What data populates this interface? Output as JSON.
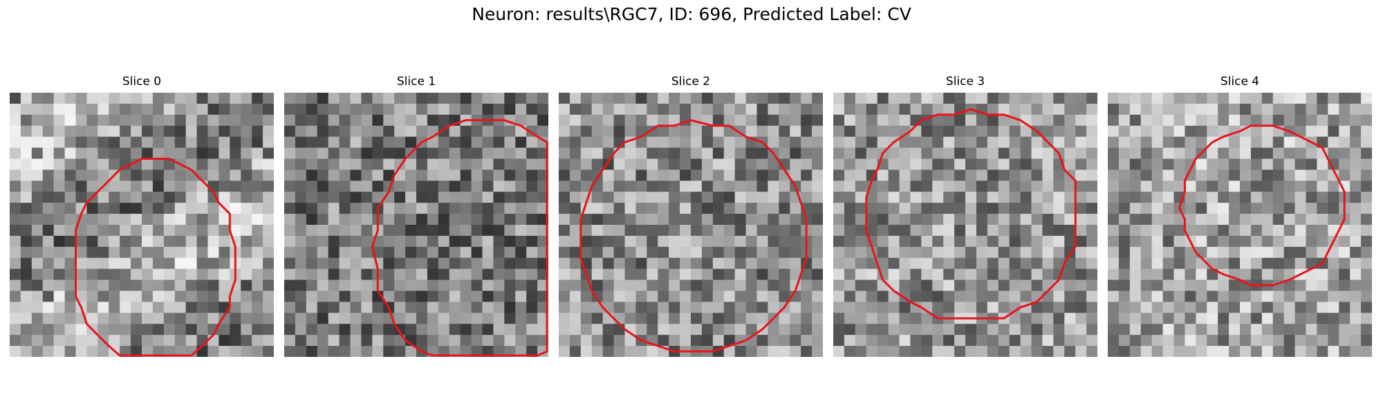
{
  "figure": {
    "title": "Neuron: results\\RGC7, ID: 696, Predicted Label: CV"
  },
  "panels": [
    {
      "title": "Slice 0"
    },
    {
      "title": "Slice 1"
    },
    {
      "title": "Slice 2"
    },
    {
      "title": "Slice 3"
    },
    {
      "title": "Slice 4"
    }
  ],
  "style": {
    "contour_color": "#e8141b",
    "background": "#ffffff",
    "colormap": "grayscale"
  }
}
